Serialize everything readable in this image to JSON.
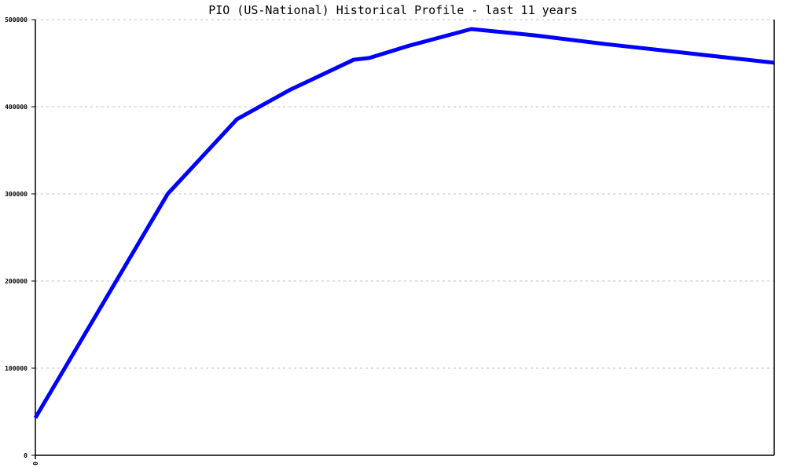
{
  "chart_data": {
    "type": "line",
    "title": "PIO (US-National) Historical Profile - last 11 years",
    "xlabel": "",
    "ylabel": "",
    "xlim": [
      0,
      11
    ],
    "ylim": [
      0,
      500000
    ],
    "x_tick_labels": [
      "0"
    ],
    "y_ticks": [
      0,
      100000,
      200000,
      300000,
      400000,
      500000
    ],
    "y_tick_labels": [
      "0",
      "100000",
      "200000",
      "300000",
      "400000",
      "500000"
    ],
    "grid": "horizontal dashed",
    "legend": "none",
    "series": [
      {
        "color": "#0000ff",
        "x": [
          0,
          1.97,
          3.0,
          3.78,
          4.74,
          4.97,
          5.56,
          6.49,
          7.43,
          8.48,
          11
        ],
        "values": [
          43000,
          300000,
          385600,
          419000,
          454000,
          456000,
          470000,
          489200,
          482000,
          472000,
          450500
        ]
      }
    ]
  }
}
